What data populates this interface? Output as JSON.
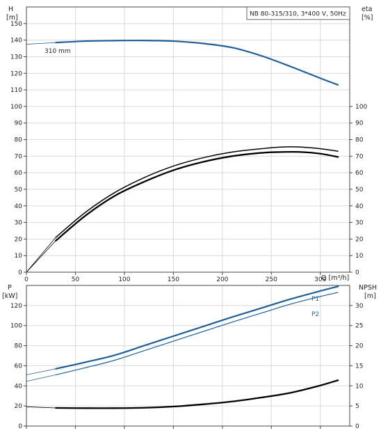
{
  "legend": "NB 80-315/310, 3*400 V, 50Hz",
  "axes": {
    "h_label_line1": "H",
    "h_label_line2": "[m]",
    "eta_label_line1": "eta",
    "eta_label_line2": "[%]",
    "q_label": "Q [m³/h]",
    "p_label_line1": "P",
    "p_label_line2": "[kW]",
    "npsh_label_line1": "NPSH",
    "npsh_label_line2": "[m]"
  },
  "annotations": {
    "impeller": "310 mm",
    "p1": "P1",
    "p2": "P2"
  },
  "colors": {
    "blue": "#1f5f99",
    "black": "#000000",
    "grid": "#d9d9d9",
    "axis": "#444444"
  },
  "chart_data": [
    {
      "type": "line",
      "title": "NB 80-315/310, 3*400 V, 50Hz",
      "xlabel": "Q [m³/h]",
      "ylabel": "H [m]",
      "y2label": "eta [%]",
      "xlim": [
        0,
        330
      ],
      "ylim": [
        0,
        160
      ],
      "y2lim": [
        0,
        160
      ],
      "x_ticks": [
        0,
        50,
        100,
        150,
        200,
        250,
        300
      ],
      "y_ticks": [
        0,
        10,
        20,
        30,
        40,
        50,
        60,
        70,
        80,
        90,
        100,
        110,
        120,
        130,
        140,
        150
      ],
      "y2_ticks": [
        0,
        10,
        20,
        30,
        40,
        50,
        60,
        70,
        80,
        90,
        100
      ],
      "grid": true,
      "series": [
        {
          "name": "310 mm",
          "axis": "H",
          "x": [
            0,
            30,
            60,
            90,
            120,
            150,
            180,
            210,
            240,
            270,
            300,
            318
          ],
          "y": [
            137.5,
            138.5,
            139.4,
            139.7,
            139.8,
            139.4,
            138.0,
            135.5,
            130.5,
            124.0,
            117.0,
            113.0
          ]
        },
        {
          "axis": "eta",
          "x": [
            0,
            30,
            60,
            90,
            120,
            150,
            180,
            210,
            240,
            260,
            280,
            300,
            318
          ],
          "y": [
            0,
            21,
            36,
            48,
            57,
            64,
            69,
            72.5,
            74.5,
            75.5,
            75.5,
            74.5,
            73
          ]
        },
        {
          "axis": "eta",
          "x": [
            0,
            30,
            60,
            90,
            120,
            150,
            180,
            210,
            240,
            260,
            280,
            300,
            318
          ],
          "y": [
            0,
            19,
            34,
            46,
            54.5,
            61.5,
            66.5,
            70,
            72,
            72.5,
            72.5,
            71.5,
            69.5
          ]
        }
      ]
    },
    {
      "type": "line",
      "xlabel": "",
      "ylabel": "P [kW]",
      "y2label": "NPSH [m]",
      "xlim": [
        0,
        330
      ],
      "ylim": [
        0,
        140
      ],
      "y2lim": [
        0,
        35
      ],
      "y_ticks": [
        0,
        20,
        40,
        60,
        80,
        100,
        120
      ],
      "y2_ticks": [
        0,
        5,
        10,
        15,
        20,
        25,
        30
      ],
      "grid": true,
      "series": [
        {
          "name": "P1",
          "axis": "P",
          "x": [
            0,
            30,
            60,
            90,
            120,
            150,
            180,
            210,
            240,
            270,
            300,
            318
          ],
          "y": [
            51,
            57,
            63.5,
            70.5,
            80,
            89.5,
            99,
            108.5,
            117.5,
            126.5,
            134.5,
            139
          ]
        },
        {
          "name": "P2",
          "axis": "P",
          "x": [
            0,
            30,
            60,
            90,
            120,
            150,
            180,
            210,
            240,
            270,
            300,
            318
          ],
          "y": [
            44.5,
            51,
            58,
            65.5,
            75,
            84.5,
            94,
            103.5,
            112.5,
            121.5,
            129,
            133
          ]
        },
        {
          "axis": "NPSH",
          "x": [
            0,
            30,
            60,
            90,
            120,
            150,
            180,
            210,
            240,
            270,
            300,
            318
          ],
          "y": [
            4.8,
            4.5,
            4.45,
            4.45,
            4.55,
            4.85,
            5.4,
            6.1,
            7.1,
            8.3,
            10.1,
            11.4
          ]
        }
      ]
    }
  ]
}
